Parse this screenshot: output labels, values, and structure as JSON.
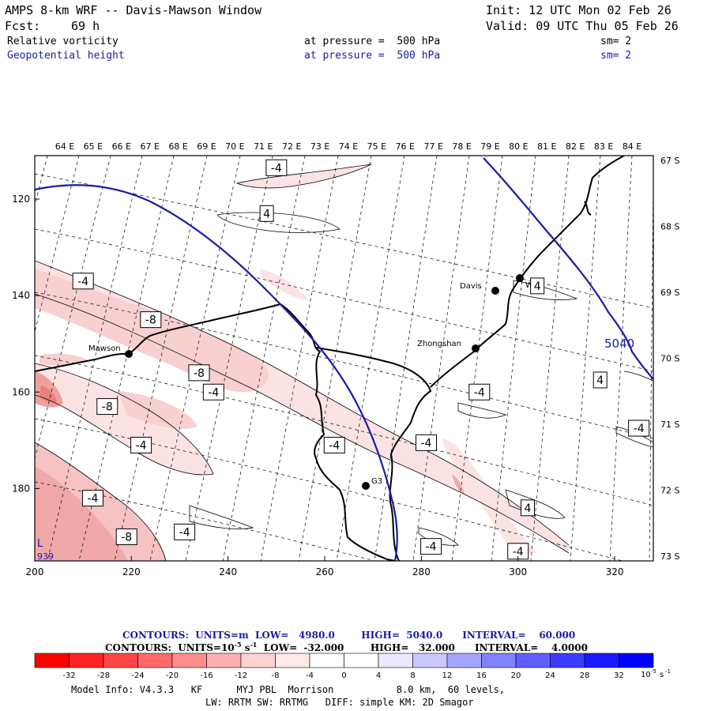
{
  "header": {
    "title": "AMPS 8-km WRF -- Davis-Mawson Window",
    "init": "Init: 12 UTC Mon 02 Feb 26",
    "fcst_label": "Fcst:",
    "fcst_value": "69 h",
    "valid": "Valid: 09 UTC Thu 05 Feb 26",
    "field1_name": "Relative vorticity",
    "field1_level": "at pressure =  500 hPa",
    "field1_sm": "sm= 2",
    "field2_name": "Geopotential height",
    "field2_level": "at pressure =  500 hPa",
    "field2_sm": "sm= 2"
  },
  "chart_data": {
    "type": "heatmap",
    "description_fields": [
      "Relative vorticity 500 hPa (shaded + thin contours)",
      "Geopotential height 500 hPa (thick blue contour)"
    ],
    "x_grid": {
      "ticks": [
        200,
        220,
        240,
        260,
        280,
        300,
        320
      ],
      "range": [
        200,
        328
      ]
    },
    "y_grid": {
      "ticks": [
        120,
        140,
        160,
        180
      ],
      "range": [
        111,
        195
      ]
    },
    "longitude_labels": [
      "64 E",
      "65 E",
      "66 E",
      "67 E",
      "68 E",
      "69 E",
      "70 E",
      "71 E",
      "72 E",
      "73 E",
      "74 E",
      "75 E",
      "76 E",
      "77 E",
      "78 E",
      "79 E",
      "80 E",
      "81 E",
      "82 E",
      "83 E",
      "84 E"
    ],
    "latitude_labels": [
      "67 S",
      "68 S",
      "69 S",
      "70 S",
      "71 S",
      "72 S",
      "73 S"
    ],
    "height_contour_label": "5040",
    "corner_label_L": "L",
    "corner_label_value": "939",
    "stations": [
      {
        "name": "Mawson",
        "x": 219,
        "y": 151
      },
      {
        "name": "Davis",
        "x": 297,
        "y": 138
      },
      {
        "name": "WHP",
        "x": 302,
        "y": 135.5
      },
      {
        "name": "Zhongshan",
        "x": 292,
        "y": 149.5
      },
      {
        "name": "G3",
        "x": 269,
        "y": 179
      }
    ],
    "vorticity_labels": [
      {
        "text": "-4",
        "x": 250,
        "y": 113.5
      },
      {
        "text": "4",
        "x": 248,
        "y": 123
      },
      {
        "text": "-4",
        "x": 210,
        "y": 137
      },
      {
        "text": "-8",
        "x": 224,
        "y": 145
      },
      {
        "text": "-8",
        "x": 234,
        "y": 156
      },
      {
        "text": "-4",
        "x": 237,
        "y": 160
      },
      {
        "text": "-8",
        "x": 215,
        "y": 163
      },
      {
        "text": "-4",
        "x": 222,
        "y": 171
      },
      {
        "text": "-4",
        "x": 212,
        "y": 182
      },
      {
        "text": "-8",
        "x": 219,
        "y": 190
      },
      {
        "text": "-4",
        "x": 231,
        "y": 189
      },
      {
        "text": "-4",
        "x": 262,
        "y": 171
      },
      {
        "text": "-4",
        "x": 281,
        "y": 170.5
      },
      {
        "text": "-4",
        "x": 292,
        "y": 160
      },
      {
        "text": "4",
        "x": 304,
        "y": 138
      },
      {
        "text": "4",
        "x": 317,
        "y": 157.5
      },
      {
        "text": "-4",
        "x": 325,
        "y": 167.5
      },
      {
        "text": "4",
        "x": 302,
        "y": 184
      },
      {
        "text": "-4",
        "x": 282,
        "y": 192
      },
      {
        "text": "-4",
        "x": 300,
        "y": 193
      }
    ],
    "colorbar": {
      "levels": [
        -32,
        -28,
        -24,
        -20,
        -16,
        -12,
        -8,
        -4,
        0,
        4,
        8,
        12,
        16,
        20,
        24,
        28,
        32
      ],
      "colors": [
        "#ff0000",
        "#ff2323",
        "#ff4646",
        "#ff6969",
        "#ff8c8c",
        "#ffafaf",
        "#ffd2d2",
        "#ffe9e9",
        "#ffffff",
        "#ffffff",
        "#e9e9ff",
        "#c8c8ff",
        "#a5a5ff",
        "#8282ff",
        "#5f5fff",
        "#3c3cff",
        "#1919ff",
        "#0000ff"
      ],
      "units_suffix": "10",
      "units_exp": "-5",
      "units_s": "s",
      "units_s_exp": "-1"
    },
    "contour_info_1": "CONTOURS:  UNITS=m  LOW=   4980.0        HIGH=  5040.0      INTERVAL=    60.000",
    "contour_info_2": "CONTOURS:  UNITS=10",
    "contour_info_2_exp": "-5",
    "contour_info_2_s": " s",
    "contour_info_2_sexp": "-1",
    "contour_info_2_rest": "  LOW=  -32.000        HIGH=   32.000      INTERVAL=    4.0000"
  },
  "footer": {
    "line1": "Model Info: V4.3.3   KF      MYJ PBL  Morrison           8.0 km,  60 levels,",
    "line2": "LW: RRTM SW: RRTMG   DIFF: simple KM: 2D Smagor"
  },
  "colors": {
    "height_contour": "#1a1aa8",
    "coast": "#000000",
    "grid": "#000000",
    "shading_weak": "#fbe3e3",
    "shading_mod": "#f6c2c2",
    "shading_strong": "#ee9898"
  }
}
